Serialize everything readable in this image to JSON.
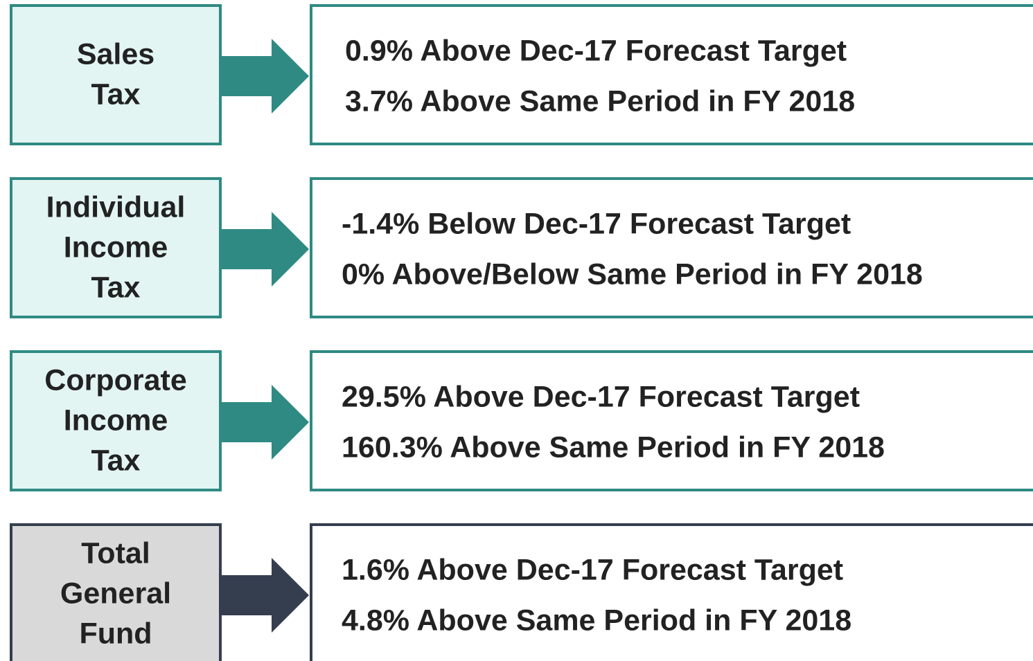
{
  "rows": [
    {
      "label": [
        "Sales",
        "Tax"
      ],
      "lines": [
        "0.9% Above Dec-17 Forecast Target",
        "3.7% Above Same Period in FY 2018"
      ],
      "color": "#2f8a83",
      "fill": "#e2f5f3"
    },
    {
      "label": [
        "Individual",
        "Income",
        "Tax"
      ],
      "lines": [
        "-1.4% Below Dec-17 Forecast Target",
        "0% Above/Below Same Period in FY 2018"
      ],
      "color": "#2f8a83",
      "fill": "#e2f5f3"
    },
    {
      "label": [
        "Corporate",
        "Income",
        "Tax"
      ],
      "lines": [
        "29.5% Above Dec-17 Forecast Target",
        "160.3% Above Same Period in FY 2018"
      ],
      "color": "#2f8a83",
      "fill": "#e2f5f3"
    },
    {
      "label": [
        "Total",
        "General",
        "Fund"
      ],
      "lines": [
        "1.6% Above Dec-17 Forecast Target",
        "4.8% Above Same Period in FY 2018"
      ],
      "color": "#343e4f",
      "fill": "#d9d9d9"
    }
  ]
}
